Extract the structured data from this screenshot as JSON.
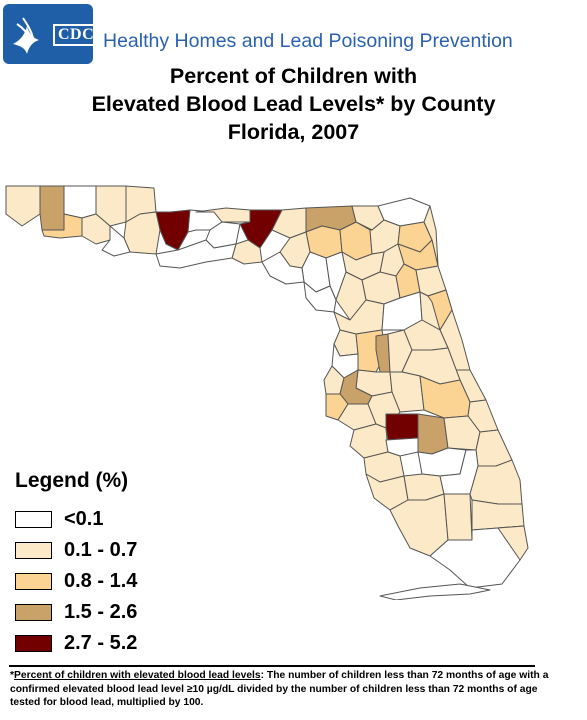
{
  "logo": {
    "text": "CDC"
  },
  "header": {
    "org": "Healthy Homes and Lead Poisoning Prevention",
    "title_lines": [
      "Percent of Children with",
      "Elevated Blood Lead Levels* by County",
      "Florida, 2007"
    ]
  },
  "colors": {
    "class_0": "#ffffff",
    "class_1": "#fce9c7",
    "class_2": "#fbd494",
    "class_3": "#c9a26a",
    "class_4": "#720000",
    "border": "#555555",
    "logo_blue": "#1f5fa8",
    "org_text": "#2a62b0"
  },
  "legend": {
    "title": "Legend (%)",
    "items": [
      {
        "label": "<0.1",
        "class": 0
      },
      {
        "label": "0.1 - 0.7",
        "class": 1
      },
      {
        "label": "0.8 - 1.4",
        "class": 2
      },
      {
        "label": "1.5 - 2.6",
        "class": 3
      },
      {
        "label": "2.7 - 5.2",
        "class": 4
      }
    ]
  },
  "map_regions": [
    {
      "name": "panhandle-west-a",
      "class": 1
    },
    {
      "name": "panhandle-west-b",
      "class": 3
    },
    {
      "name": "panhandle-west-c",
      "class": 0
    },
    {
      "name": "panhandle-west-d",
      "class": 2
    },
    {
      "name": "panhandle-west-e",
      "class": 1
    },
    {
      "name": "panhandle-west-f",
      "class": 1
    },
    {
      "name": "panhandle-west-g",
      "class": 4
    },
    {
      "name": "panhandle-central-a",
      "class": 1
    },
    {
      "name": "panhandle-central-b",
      "class": 1
    },
    {
      "name": "panhandle-central-c",
      "class": 0
    },
    {
      "name": "panhandle-central-d",
      "class": 1
    },
    {
      "name": "panhandle-central-e",
      "class": 0
    },
    {
      "name": "panhandle-central-f",
      "class": 4
    },
    {
      "name": "panhandle-central-g",
      "class": 1
    },
    {
      "name": "panhandle-central-h",
      "class": 1
    },
    {
      "name": "panhandle-coast-a",
      "class": 0
    },
    {
      "name": "panhandle-coast-b",
      "class": 0
    },
    {
      "name": "bigbend-a",
      "class": 3
    },
    {
      "name": "bigbend-b",
      "class": 2
    },
    {
      "name": "bigbend-c",
      "class": 1
    },
    {
      "name": "bigbend-d",
      "class": 2
    },
    {
      "name": "bigbend-e",
      "class": 1
    },
    {
      "name": "bigbend-f",
      "class": 0
    },
    {
      "name": "bigbend-g",
      "class": 0
    },
    {
      "name": "northeast-a",
      "class": 0
    },
    {
      "name": "northeast-b",
      "class": 1
    },
    {
      "name": "northeast-c",
      "class": 2
    },
    {
      "name": "northeast-d",
      "class": 1
    },
    {
      "name": "northeast-e",
      "class": 2
    },
    {
      "name": "northeast-f",
      "class": 1
    },
    {
      "name": "north-central-a",
      "class": 1
    },
    {
      "name": "north-central-b",
      "class": 0
    },
    {
      "name": "north-central-c",
      "class": 1
    },
    {
      "name": "north-central-d",
      "class": 2
    },
    {
      "name": "north-central-e",
      "class": 1
    },
    {
      "name": "north-central-f",
      "class": 0
    },
    {
      "name": "north-central-g",
      "class": 1
    },
    {
      "name": "north-central-h",
      "class": 1
    },
    {
      "name": "north-central-i",
      "class": 0
    },
    {
      "name": "north-central-j",
      "class": 1
    },
    {
      "name": "east-coast-a",
      "class": 2
    },
    {
      "name": "east-coast-b",
      "class": 1
    },
    {
      "name": "east-coast-c",
      "class": 1
    },
    {
      "name": "central-a",
      "class": 1
    },
    {
      "name": "central-b",
      "class": 2
    },
    {
      "name": "central-c",
      "class": 3
    },
    {
      "name": "central-d",
      "class": 1
    },
    {
      "name": "central-e",
      "class": 1
    },
    {
      "name": "central-f",
      "class": 1
    },
    {
      "name": "central-g",
      "class": 0
    },
    {
      "name": "central-h",
      "class": 1
    },
    {
      "name": "tampa-a",
      "class": 1
    },
    {
      "name": "tampa-b",
      "class": 3
    },
    {
      "name": "tampa-c",
      "class": 2
    },
    {
      "name": "tampa-d",
      "class": 1
    },
    {
      "name": "central-east-a",
      "class": 1
    },
    {
      "name": "central-east-b",
      "class": 2
    },
    {
      "name": "central-east-c",
      "class": 1
    },
    {
      "name": "central-east-d",
      "class": 1
    },
    {
      "name": "south-central-a",
      "class": 1
    },
    {
      "name": "south-central-b",
      "class": 4
    },
    {
      "name": "south-central-c",
      "class": 3
    },
    {
      "name": "south-central-d",
      "class": 1
    },
    {
      "name": "south-central-e",
      "class": 0
    },
    {
      "name": "south-central-f",
      "class": 1
    },
    {
      "name": "south-central-g",
      "class": 0
    },
    {
      "name": "south-central-h",
      "class": 1
    },
    {
      "name": "southwest-a",
      "class": 1
    },
    {
      "name": "southwest-b",
      "class": 1
    },
    {
      "name": "southwest-c",
      "class": 0
    },
    {
      "name": "southwest-d",
      "class": 1
    },
    {
      "name": "southwest-e",
      "class": 1
    },
    {
      "name": "southeast-a",
      "class": 1
    },
    {
      "name": "southeast-b",
      "class": 1
    },
    {
      "name": "southeast-c",
      "class": 0
    },
    {
      "name": "southeast-d",
      "class": 1
    },
    {
      "name": "keys",
      "class": 0
    }
  ],
  "footnote": {
    "marker": "*",
    "term": "Percent of children with elevated blood lead levels",
    "text": ": The number of children less than 72 months of age with a confirmed elevated blood lead level ≥10 µg/dL divided by the number of children less than 72 months of age tested for blood lead, multiplied by 100."
  }
}
